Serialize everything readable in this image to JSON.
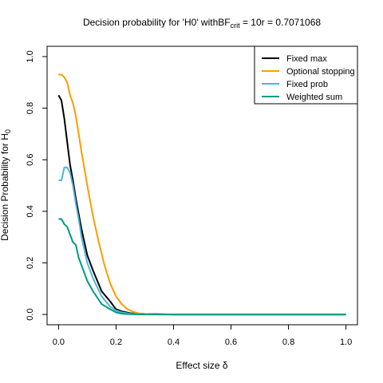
{
  "chart_data": {
    "type": "line",
    "title": {
      "prefix": "Decision probability for 'H0' with",
      "bf": "BF",
      "crit": "crit",
      "suffix": " = 10r = 0.7071068"
    },
    "xlabel": "Effect size δ",
    "ylabel": {
      "main": "Decision Probability for H",
      "sub": "0"
    },
    "xlim": [
      -0.04,
      1.04
    ],
    "ylim": [
      -0.04,
      1.04
    ],
    "xticks": [
      "0.0",
      "0.2",
      "0.4",
      "0.6",
      "0.8",
      "1.0"
    ],
    "yticks": [
      "0.0",
      "0.2",
      "0.4",
      "0.6",
      "0.8",
      "1.0"
    ],
    "legend_position": "top-right",
    "series": [
      {
        "name": "Fixed max",
        "color": "#000000",
        "x": [
          0,
          0.01,
          0.02,
          0.03,
          0.04,
          0.05,
          0.06,
          0.07,
          0.08,
          0.1,
          0.12,
          0.15,
          0.18,
          0.2,
          0.22,
          0.25,
          0.3,
          0.4,
          0.5,
          0.6,
          0.7,
          0.8,
          0.9,
          1.0
        ],
        "y": [
          0.85,
          0.83,
          0.76,
          0.67,
          0.58,
          0.52,
          0.45,
          0.39,
          0.33,
          0.23,
          0.17,
          0.09,
          0.05,
          0.02,
          0.012,
          0.005,
          0.002,
          0,
          0,
          0,
          0,
          0,
          0,
          0
        ]
      },
      {
        "name": "Optional stopping",
        "color": "#f5a000",
        "x": [
          0,
          0.01,
          0.02,
          0.03,
          0.04,
          0.05,
          0.06,
          0.07,
          0.08,
          0.1,
          0.12,
          0.14,
          0.16,
          0.18,
          0.2,
          0.22,
          0.24,
          0.26,
          0.28,
          0.3,
          0.35,
          0.4,
          0.5,
          0.6,
          0.7,
          0.8,
          0.9,
          1.0
        ],
        "y": [
          0.93,
          0.93,
          0.92,
          0.9,
          0.85,
          0.82,
          0.77,
          0.7,
          0.63,
          0.5,
          0.38,
          0.28,
          0.19,
          0.12,
          0.07,
          0.04,
          0.02,
          0.01,
          0.004,
          0.002,
          0,
          0,
          0,
          0,
          0,
          0,
          0,
          0
        ]
      },
      {
        "name": "Fixed prob",
        "color": "#4fb6d8",
        "x": [
          0,
          0.01,
          0.02,
          0.03,
          0.04,
          0.05,
          0.06,
          0.07,
          0.08,
          0.1,
          0.12,
          0.15,
          0.18,
          0.2,
          0.22,
          0.25,
          0.3,
          0.4,
          0.5,
          0.6,
          0.7,
          0.8,
          0.9,
          1.0
        ],
        "y": [
          0.52,
          0.52,
          0.57,
          0.57,
          0.55,
          0.5,
          0.43,
          0.37,
          0.3,
          0.2,
          0.14,
          0.07,
          0.03,
          0.015,
          0.008,
          0.003,
          0.001,
          0,
          0,
          0,
          0,
          0,
          0,
          0
        ]
      },
      {
        "name": "Weighted sum",
        "color": "#009a80",
        "x": [
          0,
          0.01,
          0.02,
          0.03,
          0.04,
          0.05,
          0.06,
          0.07,
          0.08,
          0.1,
          0.12,
          0.15,
          0.18,
          0.2,
          0.22,
          0.25,
          0.3,
          0.4,
          0.5,
          0.6,
          0.7,
          0.8,
          0.9,
          1.0
        ],
        "y": [
          0.37,
          0.37,
          0.35,
          0.34,
          0.31,
          0.28,
          0.27,
          0.22,
          0.19,
          0.13,
          0.09,
          0.04,
          0.02,
          0.008,
          0.003,
          0.001,
          0,
          0,
          0,
          0,
          0,
          0,
          0,
          0
        ]
      }
    ]
  }
}
